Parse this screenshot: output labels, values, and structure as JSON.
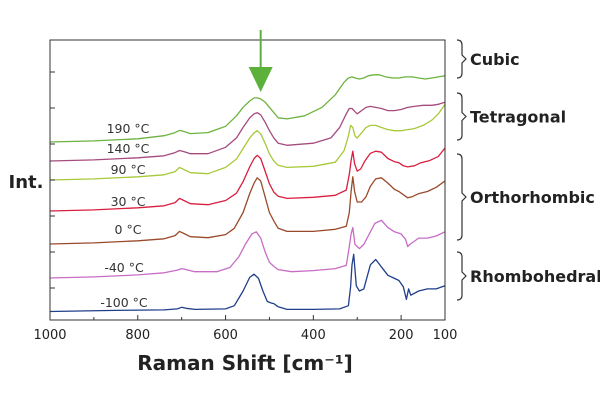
{
  "chart_data": {
    "type": "line",
    "title": "",
    "xlabel": "Raman Shift [cm⁻¹]",
    "ylabel": "Int.",
    "xlim": [
      1000,
      100
    ],
    "x_reversed": true,
    "xticks": [
      1000,
      800,
      600,
      400,
      200,
      100
    ],
    "grid": false,
    "legend": "none",
    "series": [
      {
        "name": "-100 °C",
        "color": "#1f3f8a",
        "points": [
          [
            1000,
            0.5
          ],
          [
            850,
            1.5
          ],
          [
            740,
            2
          ],
          [
            710,
            3
          ],
          [
            700,
            4.5
          ],
          [
            690,
            3.5
          ],
          [
            670,
            2.5
          ],
          [
            600,
            3
          ],
          [
            580,
            6
          ],
          [
            560,
            20
          ],
          [
            545,
            33
          ],
          [
            535,
            36
          ],
          [
            525,
            32
          ],
          [
            515,
            20
          ],
          [
            505,
            10
          ],
          [
            495,
            8.5
          ],
          [
            490,
            8
          ],
          [
            480,
            5
          ],
          [
            460,
            2.5
          ],
          [
            400,
            2.5
          ],
          [
            340,
            3
          ],
          [
            320,
            6
          ],
          [
            315,
            24
          ],
          [
            312,
            45
          ],
          [
            308,
            55
          ],
          [
            302,
            25
          ],
          [
            295,
            20
          ],
          [
            285,
            22
          ],
          [
            270,
            45
          ],
          [
            258,
            50
          ],
          [
            245,
            43
          ],
          [
            230,
            35
          ],
          [
            215,
            32
          ],
          [
            205,
            30
          ],
          [
            195,
            24
          ],
          [
            188,
            12
          ],
          [
            183,
            22
          ],
          [
            178,
            16
          ],
          [
            160,
            20
          ],
          [
            140,
            22
          ],
          [
            120,
            22
          ],
          [
            100,
            25
          ]
        ]
      },
      {
        "name": "-40 °C",
        "color": "#c86cc6",
        "points": [
          [
            1000,
            0
          ],
          [
            900,
            1
          ],
          [
            800,
            3
          ],
          [
            740,
            5
          ],
          [
            710,
            7.5
          ],
          [
            700,
            9
          ],
          [
            690,
            8
          ],
          [
            670,
            6
          ],
          [
            620,
            6
          ],
          [
            590,
            10
          ],
          [
            570,
            20
          ],
          [
            555,
            32
          ],
          [
            540,
            42
          ],
          [
            530,
            44
          ],
          [
            520,
            38
          ],
          [
            510,
            25
          ],
          [
            500,
            15
          ],
          [
            490,
            11
          ],
          [
            480,
            8
          ],
          [
            450,
            6
          ],
          [
            400,
            7
          ],
          [
            350,
            9
          ],
          [
            325,
            12
          ],
          [
            318,
            30
          ],
          [
            314,
            42
          ],
          [
            310,
            48
          ],
          [
            305,
            32
          ],
          [
            295,
            28
          ],
          [
            285,
            32
          ],
          [
            275,
            40
          ],
          [
            260,
            52
          ],
          [
            245,
            55
          ],
          [
            230,
            48
          ],
          [
            215,
            44
          ],
          [
            200,
            42
          ],
          [
            190,
            37
          ],
          [
            185,
            30
          ],
          [
            180,
            32
          ],
          [
            160,
            38
          ],
          [
            140,
            38
          ],
          [
            120,
            40
          ],
          [
            100,
            44
          ]
        ]
      },
      {
        "name": "0 °C",
        "color": "#9a4a2a",
        "points": [
          [
            1000,
            0
          ],
          [
            900,
            1
          ],
          [
            800,
            3
          ],
          [
            740,
            5
          ],
          [
            715,
            8
          ],
          [
            705,
            12
          ],
          [
            695,
            10
          ],
          [
            680,
            7
          ],
          [
            640,
            6
          ],
          [
            600,
            9
          ],
          [
            580,
            15
          ],
          [
            560,
            30
          ],
          [
            545,
            48
          ],
          [
            535,
            58
          ],
          [
            528,
            63
          ],
          [
            520,
            60
          ],
          [
            510,
            45
          ],
          [
            500,
            30
          ],
          [
            490,
            22
          ],
          [
            480,
            15
          ],
          [
            460,
            12
          ],
          [
            400,
            12
          ],
          [
            350,
            14
          ],
          [
            325,
            17
          ],
          [
            318,
            30
          ],
          [
            314,
            50
          ],
          [
            310,
            64
          ],
          [
            306,
            50
          ],
          [
            300,
            40
          ],
          [
            290,
            40
          ],
          [
            280,
            45
          ],
          [
            270,
            55
          ],
          [
            258,
            62
          ],
          [
            245,
            63
          ],
          [
            230,
            58
          ],
          [
            215,
            52
          ],
          [
            205,
            50
          ],
          [
            195,
            47
          ],
          [
            185,
            44
          ],
          [
            175,
            45
          ],
          [
            160,
            48
          ],
          [
            140,
            50
          ],
          [
            120,
            54
          ],
          [
            100,
            60
          ]
        ]
      },
      {
        "name": "30 °C",
        "color": "#d81f3f",
        "points": [
          [
            1000,
            0
          ],
          [
            900,
            1
          ],
          [
            800,
            3
          ],
          [
            740,
            5
          ],
          [
            715,
            8
          ],
          [
            705,
            12
          ],
          [
            695,
            10
          ],
          [
            680,
            7
          ],
          [
            640,
            6
          ],
          [
            600,
            10
          ],
          [
            575,
            17
          ],
          [
            560,
            28
          ],
          [
            545,
            42
          ],
          [
            535,
            50
          ],
          [
            528,
            53
          ],
          [
            520,
            50
          ],
          [
            510,
            38
          ],
          [
            500,
            26
          ],
          [
            490,
            18
          ],
          [
            480,
            14
          ],
          [
            460,
            12
          ],
          [
            400,
            13
          ],
          [
            350,
            15
          ],
          [
            325,
            20
          ],
          [
            318,
            35
          ],
          [
            314,
            48
          ],
          [
            310,
            57
          ],
          [
            306,
            45
          ],
          [
            300,
            38
          ],
          [
            292,
            40
          ],
          [
            282,
            48
          ],
          [
            270,
            55
          ],
          [
            258,
            57
          ],
          [
            245,
            56
          ],
          [
            230,
            50
          ],
          [
            215,
            47
          ],
          [
            205,
            46
          ],
          [
            195,
            43
          ],
          [
            185,
            42
          ],
          [
            170,
            43
          ],
          [
            155,
            46
          ],
          [
            135,
            48
          ],
          [
            115,
            52
          ],
          [
            100,
            60
          ]
        ]
      },
      {
        "name": "90 °C",
        "color": "#a7c93a",
        "points": [
          [
            1000,
            0
          ],
          [
            900,
            1
          ],
          [
            800,
            3
          ],
          [
            740,
            5
          ],
          [
            715,
            8
          ],
          [
            705,
            12
          ],
          [
            695,
            10
          ],
          [
            680,
            7
          ],
          [
            640,
            6
          ],
          [
            600,
            12
          ],
          [
            575,
            20
          ],
          [
            560,
            30
          ],
          [
            545,
            40
          ],
          [
            535,
            45
          ],
          [
            528,
            47
          ],
          [
            520,
            44
          ],
          [
            510,
            35
          ],
          [
            500,
            25
          ],
          [
            490,
            18
          ],
          [
            480,
            14
          ],
          [
            460,
            12
          ],
          [
            400,
            13
          ],
          [
            350,
            17
          ],
          [
            330,
            28
          ],
          [
            320,
            42
          ],
          [
            315,
            52
          ],
          [
            310,
            50
          ],
          [
            305,
            42
          ],
          [
            300,
            40
          ],
          [
            290,
            45
          ],
          [
            280,
            50
          ],
          [
            270,
            52
          ],
          [
            258,
            52
          ],
          [
            245,
            50
          ],
          [
            230,
            48
          ],
          [
            215,
            47
          ],
          [
            200,
            47
          ],
          [
            185,
            48
          ],
          [
            170,
            49
          ],
          [
            150,
            52
          ],
          [
            130,
            57
          ],
          [
            115,
            63
          ],
          [
            100,
            72
          ]
        ]
      },
      {
        "name": "140 °C",
        "color": "#a64b7e",
        "points": [
          [
            1000,
            0
          ],
          [
            900,
            1
          ],
          [
            800,
            3
          ],
          [
            740,
            5
          ],
          [
            715,
            8
          ],
          [
            705,
            10
          ],
          [
            695,
            9
          ],
          [
            680,
            7
          ],
          [
            640,
            7
          ],
          [
            600,
            13
          ],
          [
            575,
            22
          ],
          [
            560,
            32
          ],
          [
            545,
            41
          ],
          [
            535,
            45
          ],
          [
            528,
            46
          ],
          [
            520,
            44
          ],
          [
            510,
            37
          ],
          [
            500,
            29
          ],
          [
            490,
            22
          ],
          [
            480,
            17
          ],
          [
            460,
            15
          ],
          [
            400,
            17
          ],
          [
            360,
            22
          ],
          [
            340,
            32
          ],
          [
            325,
            45
          ],
          [
            318,
            50
          ],
          [
            312,
            50
          ],
          [
            305,
            47
          ],
          [
            300,
            45
          ],
          [
            290,
            48
          ],
          [
            280,
            51
          ],
          [
            270,
            52
          ],
          [
            258,
            51
          ],
          [
            245,
            50
          ],
          [
            230,
            48
          ],
          [
            215,
            48
          ],
          [
            200,
            49
          ],
          [
            185,
            51
          ],
          [
            170,
            52
          ],
          [
            150,
            53
          ],
          [
            130,
            53
          ],
          [
            115,
            54
          ],
          [
            100,
            56
          ]
        ]
      },
      {
        "name": "190 °C",
        "color": "#6db33f",
        "points": [
          [
            1000,
            0
          ],
          [
            900,
            1
          ],
          [
            800,
            3
          ],
          [
            740,
            6
          ],
          [
            715,
            9
          ],
          [
            705,
            11
          ],
          [
            695,
            10
          ],
          [
            680,
            8
          ],
          [
            640,
            9
          ],
          [
            600,
            15
          ],
          [
            575,
            25
          ],
          [
            560,
            33
          ],
          [
            545,
            39
          ],
          [
            535,
            42
          ],
          [
            528,
            42
          ],
          [
            520,
            41
          ],
          [
            510,
            38
          ],
          [
            500,
            33
          ],
          [
            490,
            28
          ],
          [
            480,
            23
          ],
          [
            460,
            22
          ],
          [
            420,
            25
          ],
          [
            380,
            33
          ],
          [
            350,
            45
          ],
          [
            330,
            57
          ],
          [
            320,
            61
          ],
          [
            312,
            62
          ],
          [
            305,
            61
          ],
          [
            295,
            60
          ],
          [
            285,
            61
          ],
          [
            275,
            63
          ],
          [
            262,
            64
          ],
          [
            250,
            64
          ],
          [
            235,
            62
          ],
          [
            220,
            61
          ],
          [
            205,
            61
          ],
          [
            190,
            62
          ],
          [
            175,
            62
          ],
          [
            160,
            61
          ],
          [
            145,
            60
          ],
          [
            130,
            61
          ],
          [
            115,
            62
          ],
          [
            100,
            63
          ]
        ]
      }
    ],
    "phases": [
      {
        "name": "Cubic",
        "range": [
          "190 °C",
          "190 °C"
        ]
      },
      {
        "name": "Tetragonal",
        "range": [
          "140 °C",
          "90 °C"
        ]
      },
      {
        "name": "Orthorhombic",
        "range": [
          "30 °C",
          "0 °C"
        ]
      },
      {
        "name": "Rhombohedral",
        "range": [
          "-40 °C",
          "-100 °C"
        ]
      }
    ],
    "annotation": {
      "type": "arrow",
      "x": 520,
      "color": "#5bb13a"
    }
  }
}
